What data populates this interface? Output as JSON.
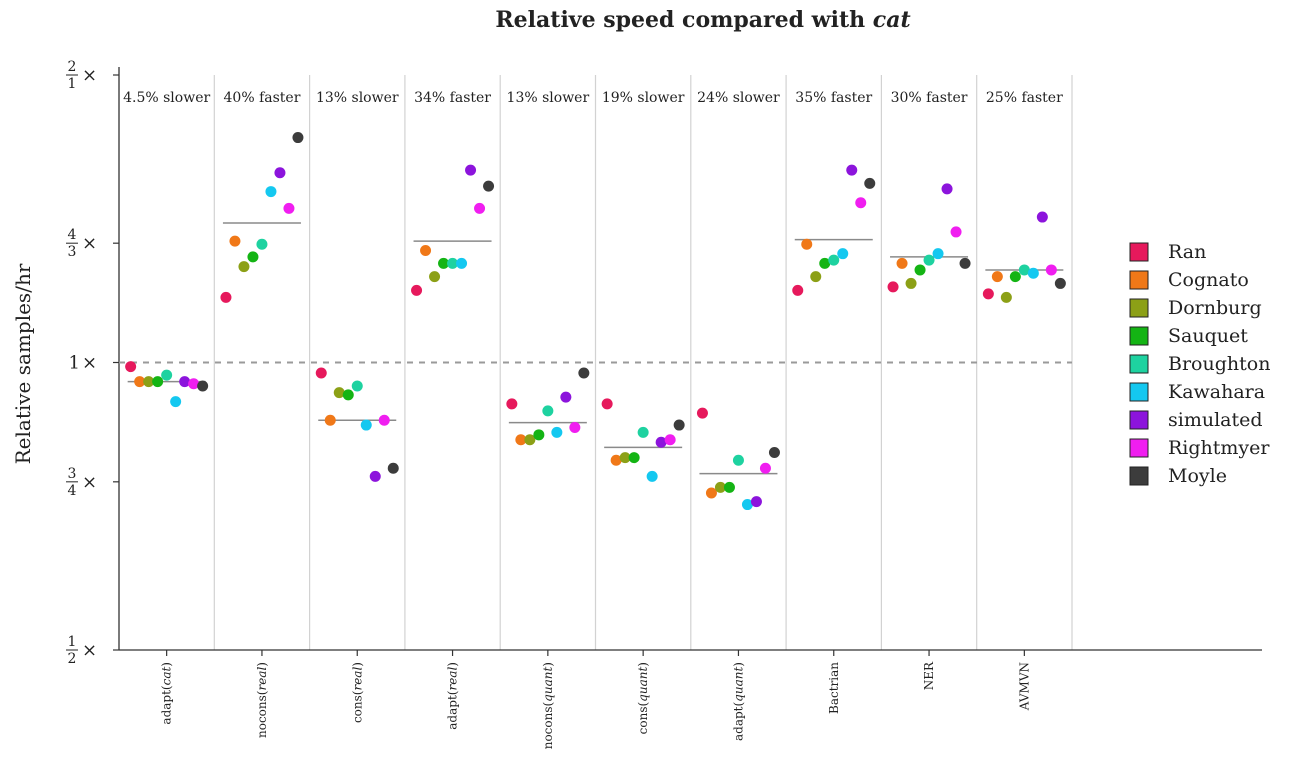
{
  "chart_data": {
    "type": "scatter",
    "title_prefix": "Relative speed compared with",
    "title_emph": "cat",
    "ylabel": "Relative samples/hr",
    "yscale": "log",
    "ylim": [
      0.5,
      2.0
    ],
    "y_ticks": [
      {
        "value": 2.0,
        "num": "2",
        "den": "1",
        "suffix": "×"
      },
      {
        "value": 1.3333,
        "num": "4",
        "den": "3",
        "suffix": "×"
      },
      {
        "value": 1.0,
        "plain": "1",
        "suffix": "×"
      },
      {
        "value": 0.75,
        "num": "3",
        "den": "4",
        "suffix": "×"
      },
      {
        "value": 0.5,
        "num": "1",
        "den": "2",
        "suffix": "×"
      }
    ],
    "reference_line": 1.0,
    "categories": [
      {
        "label_pre": "adapt(",
        "label_emph": "cat",
        "label_post": ")",
        "annotation": "4.5% slower",
        "mean": 0.955
      },
      {
        "label_pre": "nocons(",
        "label_emph": "real",
        "label_post": ")",
        "annotation": "40% faster",
        "mean": 1.4
      },
      {
        "label_pre": "cons(",
        "label_emph": "real",
        "label_post": ")",
        "annotation": "13% slower",
        "mean": 0.87
      },
      {
        "label_pre": "adapt(",
        "label_emph": "real",
        "label_post": ")",
        "annotation": "34% faster",
        "mean": 1.34
      },
      {
        "label_pre": "nocons(",
        "label_emph": "quant",
        "label_post": ")",
        "annotation": "13% slower",
        "mean": 0.865
      },
      {
        "label_pre": "cons(",
        "label_emph": "quant",
        "label_post": ")",
        "annotation": "19% slower",
        "mean": 0.815
      },
      {
        "label_pre": "adapt(",
        "label_emph": "quant",
        "label_post": ")",
        "annotation": "24% slower",
        "mean": 0.765
      },
      {
        "label_pre": "Bactrian",
        "label_emph": "",
        "label_post": "",
        "annotation": "35% faster",
        "mean": 1.345
      },
      {
        "label_pre": "NER",
        "label_emph": "",
        "label_post": "",
        "annotation": "30% faster",
        "mean": 1.29
      },
      {
        "label_pre": "AVMVN",
        "label_emph": "",
        "label_post": "",
        "annotation": "25% faster",
        "mean": 1.25
      }
    ],
    "series": [
      {
        "name": "Ran",
        "color": "#e6195c",
        "values": [
          0.99,
          1.17,
          0.975,
          1.19,
          0.905,
          0.905,
          0.885,
          1.19,
          1.2,
          1.18
        ]
      },
      {
        "name": "Cognato",
        "color": "#f07818",
        "values": [
          0.955,
          1.34,
          0.87,
          1.31,
          0.83,
          0.79,
          0.73,
          1.33,
          1.27,
          1.23
        ]
      },
      {
        "name": "Dornburg",
        "color": "#8ca016",
        "values": [
          0.955,
          1.26,
          0.93,
          1.23,
          0.83,
          0.795,
          0.74,
          1.23,
          1.21,
          1.17
        ]
      },
      {
        "name": "Sauquet",
        "color": "#14b414",
        "values": [
          0.955,
          1.29,
          0.925,
          1.27,
          0.84,
          0.795,
          0.74,
          1.27,
          1.25,
          1.23
        ]
      },
      {
        "name": "Broughton",
        "color": "#1ed2a0",
        "values": [
          0.97,
          1.33,
          0.945,
          1.27,
          0.89,
          0.845,
          0.79,
          1.28,
          1.28,
          1.25
        ]
      },
      {
        "name": "Kawahara",
        "color": "#14c8f0",
        "values": [
          0.91,
          1.51,
          0.86,
          1.27,
          0.845,
          0.76,
          0.71,
          1.3,
          1.3,
          1.24
        ]
      },
      {
        "name": "simulated",
        "color": "#8c14dc",
        "values": [
          0.955,
          1.58,
          0.76,
          1.59,
          0.92,
          0.825,
          0.715,
          1.59,
          1.52,
          1.42
        ]
      },
      {
        "name": "Rightmyer",
        "color": "#f01ef0",
        "values": [
          0.95,
          1.45,
          0.87,
          1.45,
          0.855,
          0.83,
          0.775,
          1.47,
          1.37,
          1.25
        ]
      },
      {
        "name": "Moyle",
        "color": "#3c3c3c",
        "values": [
          0.945,
          1.72,
          0.775,
          1.53,
          0.975,
          0.86,
          0.805,
          1.54,
          1.27,
          1.21
        ]
      }
    ]
  }
}
